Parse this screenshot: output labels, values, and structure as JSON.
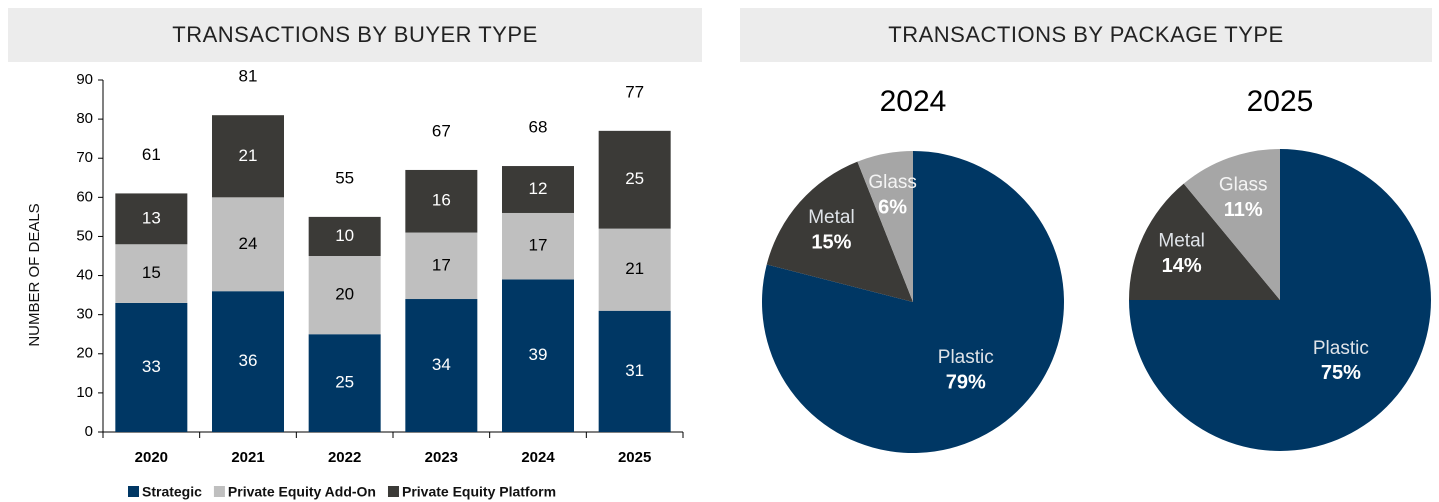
{
  "headers": [
    "TRANSACTIONS BY BUYER TYPE",
    "TRANSACTIONS BY PACKAGE TYPE"
  ],
  "chart_data": [
    {
      "type": "stacked_bar",
      "ylabel": "NUMBER OF DEALS",
      "categories": [
        "2020",
        "2021",
        "2022",
        "2023",
        "2024",
        "2025"
      ],
      "series": [
        {
          "name": "Strategic",
          "color": "#003764",
          "values": [
            33,
            36,
            25,
            34,
            39,
            31
          ]
        },
        {
          "name": "Private Equity Add-On",
          "color": "#bfbfbf",
          "values": [
            15,
            24,
            20,
            17,
            17,
            21
          ]
        },
        {
          "name": "Private Equity Platform",
          "color": "#3b3a37",
          "values": [
            13,
            21,
            10,
            16,
            12,
            25
          ]
        }
      ],
      "totals": [
        61,
        81,
        55,
        67,
        68,
        77
      ],
      "ylim": [
        0,
        90
      ],
      "yticks": [
        0,
        10,
        20,
        30,
        40,
        50,
        60,
        70,
        80,
        90
      ],
      "legend": "bottom"
    },
    {
      "type": "pie",
      "title": "2024",
      "categories": [
        "Plastic",
        "Metal",
        "Glass"
      ],
      "values": [
        79,
        15,
        6
      ],
      "value_labels": [
        "79%",
        "15%",
        "6%"
      ],
      "colors": [
        "#003764",
        "#3b3a37",
        "#a6a6a6"
      ]
    },
    {
      "type": "pie",
      "title": "2025",
      "categories": [
        "Plastic",
        "Metal",
        "Glass"
      ],
      "values": [
        75,
        14,
        11
      ],
      "value_labels": [
        "75%",
        "14%",
        "11%"
      ],
      "colors": [
        "#003764",
        "#3b3a37",
        "#a6a6a6"
      ]
    }
  ]
}
